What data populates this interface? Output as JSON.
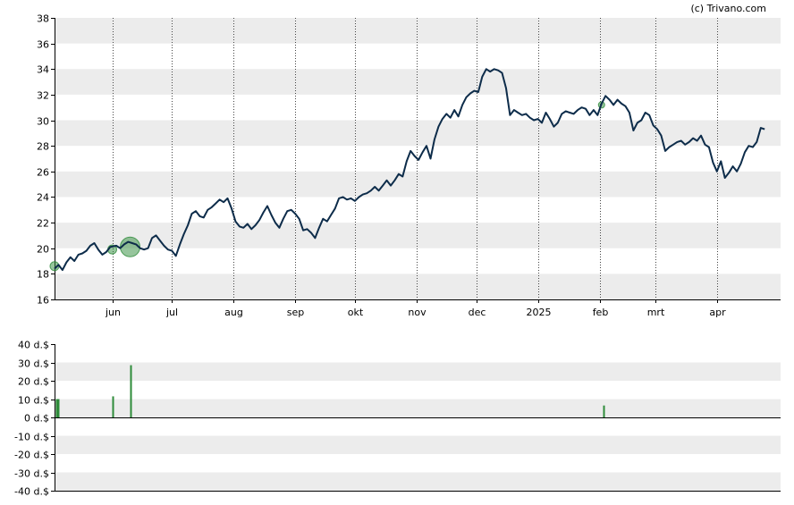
{
  "credit": "(c) Trivano.com",
  "chart_data": [
    {
      "type": "line",
      "name": "price",
      "ylim": [
        16,
        38
      ],
      "yticks": [
        16,
        18,
        20,
        22,
        24,
        26,
        28,
        30,
        32,
        34,
        36,
        38
      ],
      "ytick_labels": [
        "16",
        "18",
        "20",
        "22",
        "24",
        "26",
        "28",
        "30",
        "32",
        "34",
        "36",
        "38"
      ],
      "grid": "horizontal bands + dotted monthly verticals",
      "xlim": [
        "2024-05-03",
        "2025-05-03"
      ],
      "xtick_dates": [
        "2024-06-01",
        "2024-07-01",
        "2024-08-01",
        "2024-09-01",
        "2024-10-01",
        "2024-11-01",
        "2024-12-01",
        "2025-01-01",
        "2025-02-01",
        "2025-03-01",
        "2025-04-01"
      ],
      "xtick_labels": [
        "jun",
        "jul",
        "aug",
        "sep",
        "okt",
        "nov",
        "dec",
        "2025",
        "feb",
        "mrt",
        "apr"
      ],
      "line_color": "#0d2c4a",
      "series": [
        {
          "points": [
            [
              "2024-05-03",
              18.4
            ],
            [
              "2024-05-05",
              18.7
            ],
            [
              "2024-05-07",
              18.3
            ],
            [
              "2024-05-09",
              18.9
            ],
            [
              "2024-05-11",
              19.3
            ],
            [
              "2024-05-13",
              19.0
            ],
            [
              "2024-05-15",
              19.5
            ],
            [
              "2024-05-17",
              19.6
            ],
            [
              "2024-05-19",
              19.8
            ],
            [
              "2024-05-21",
              20.2
            ],
            [
              "2024-05-23",
              20.4
            ],
            [
              "2024-05-25",
              19.9
            ],
            [
              "2024-05-27",
              19.5
            ],
            [
              "2024-05-29",
              19.7
            ],
            [
              "2024-05-31",
              20.1
            ],
            [
              "2024-06-03",
              20.2
            ],
            [
              "2024-06-05",
              20.0
            ],
            [
              "2024-06-07",
              20.3
            ],
            [
              "2024-06-09",
              20.5
            ],
            [
              "2024-06-11",
              20.4
            ],
            [
              "2024-06-13",
              20.3
            ],
            [
              "2024-06-15",
              20.0
            ],
            [
              "2024-06-17",
              19.9
            ],
            [
              "2024-06-19",
              20.0
            ],
            [
              "2024-06-21",
              20.8
            ],
            [
              "2024-06-23",
              21.0
            ],
            [
              "2024-06-25",
              20.6
            ],
            [
              "2024-06-27",
              20.2
            ],
            [
              "2024-06-29",
              19.9
            ],
            [
              "2024-07-01",
              19.8
            ],
            [
              "2024-07-03",
              19.4
            ],
            [
              "2024-07-05",
              20.3
            ],
            [
              "2024-07-07",
              21.1
            ],
            [
              "2024-07-09",
              21.8
            ],
            [
              "2024-07-11",
              22.7
            ],
            [
              "2024-07-13",
              22.9
            ],
            [
              "2024-07-15",
              22.5
            ],
            [
              "2024-07-17",
              22.4
            ],
            [
              "2024-07-19",
              23.0
            ],
            [
              "2024-07-21",
              23.2
            ],
            [
              "2024-07-23",
              23.5
            ],
            [
              "2024-07-25",
              23.8
            ],
            [
              "2024-07-27",
              23.6
            ],
            [
              "2024-07-29",
              23.9
            ],
            [
              "2024-07-31",
              23.1
            ],
            [
              "2024-08-02",
              22.1
            ],
            [
              "2024-08-04",
              21.7
            ],
            [
              "2024-08-06",
              21.6
            ],
            [
              "2024-08-08",
              21.9
            ],
            [
              "2024-08-10",
              21.5
            ],
            [
              "2024-08-12",
              21.8
            ],
            [
              "2024-08-14",
              22.2
            ],
            [
              "2024-08-16",
              22.8
            ],
            [
              "2024-08-18",
              23.3
            ],
            [
              "2024-08-20",
              22.6
            ],
            [
              "2024-08-22",
              22.0
            ],
            [
              "2024-08-24",
              21.6
            ],
            [
              "2024-08-26",
              22.3
            ],
            [
              "2024-08-28",
              22.9
            ],
            [
              "2024-08-30",
              23.0
            ],
            [
              "2024-09-01",
              22.7
            ],
            [
              "2024-09-03",
              22.3
            ],
            [
              "2024-09-05",
              21.4
            ],
            [
              "2024-09-07",
              21.5
            ],
            [
              "2024-09-09",
              21.2
            ],
            [
              "2024-09-11",
              20.8
            ],
            [
              "2024-09-13",
              21.6
            ],
            [
              "2024-09-15",
              22.3
            ],
            [
              "2024-09-17",
              22.1
            ],
            [
              "2024-09-19",
              22.6
            ],
            [
              "2024-09-21",
              23.1
            ],
            [
              "2024-09-23",
              23.9
            ],
            [
              "2024-09-25",
              24.0
            ],
            [
              "2024-09-27",
              23.8
            ],
            [
              "2024-09-29",
              23.9
            ],
            [
              "2024-10-01",
              23.7
            ],
            [
              "2024-10-03",
              24.0
            ],
            [
              "2024-10-05",
              24.2
            ],
            [
              "2024-10-07",
              24.3
            ],
            [
              "2024-10-09",
              24.5
            ],
            [
              "2024-10-11",
              24.8
            ],
            [
              "2024-10-13",
              24.5
            ],
            [
              "2024-10-15",
              24.9
            ],
            [
              "2024-10-17",
              25.3
            ],
            [
              "2024-10-19",
              24.9
            ],
            [
              "2024-10-21",
              25.3
            ],
            [
              "2024-10-23",
              25.8
            ],
            [
              "2024-10-25",
              25.6
            ],
            [
              "2024-10-27",
              26.8
            ],
            [
              "2024-10-29",
              27.6
            ],
            [
              "2024-10-31",
              27.2
            ],
            [
              "2024-11-02",
              26.9
            ],
            [
              "2024-11-04",
              27.5
            ],
            [
              "2024-11-06",
              28.0
            ],
            [
              "2024-11-08",
              27.0
            ],
            [
              "2024-11-10",
              28.5
            ],
            [
              "2024-11-12",
              29.5
            ],
            [
              "2024-11-14",
              30.1
            ],
            [
              "2024-11-16",
              30.5
            ],
            [
              "2024-11-18",
              30.2
            ],
            [
              "2024-11-20",
              30.8
            ],
            [
              "2024-11-22",
              30.3
            ],
            [
              "2024-11-24",
              31.2
            ],
            [
              "2024-11-26",
              31.8
            ],
            [
              "2024-11-28",
              32.1
            ],
            [
              "2024-11-30",
              32.3
            ],
            [
              "2024-12-02",
              32.2
            ],
            [
              "2024-12-04",
              33.4
            ],
            [
              "2024-12-06",
              34.0
            ],
            [
              "2024-12-08",
              33.8
            ],
            [
              "2024-12-10",
              34.0
            ],
            [
              "2024-12-12",
              33.9
            ],
            [
              "2024-12-14",
              33.7
            ],
            [
              "2024-12-16",
              32.5
            ],
            [
              "2024-12-18",
              30.4
            ],
            [
              "2024-12-20",
              30.8
            ],
            [
              "2024-12-22",
              30.6
            ],
            [
              "2024-12-24",
              30.4
            ],
            [
              "2024-12-26",
              30.5
            ],
            [
              "2024-12-28",
              30.2
            ],
            [
              "2024-12-30",
              30.0
            ],
            [
              "2025-01-01",
              30.1
            ],
            [
              "2025-01-03",
              29.8
            ],
            [
              "2025-01-05",
              30.6
            ],
            [
              "2025-01-07",
              30.1
            ],
            [
              "2025-01-09",
              29.5
            ],
            [
              "2025-01-11",
              29.8
            ],
            [
              "2025-01-13",
              30.5
            ],
            [
              "2025-01-15",
              30.7
            ],
            [
              "2025-01-17",
              30.6
            ],
            [
              "2025-01-19",
              30.5
            ],
            [
              "2025-01-21",
              30.8
            ],
            [
              "2025-01-23",
              31.0
            ],
            [
              "2025-01-25",
              30.9
            ],
            [
              "2025-01-27",
              30.4
            ],
            [
              "2025-01-29",
              30.8
            ],
            [
              "2025-01-31",
              30.4
            ],
            [
              "2025-02-02",
              31.3
            ],
            [
              "2025-02-04",
              31.9
            ],
            [
              "2025-02-06",
              31.6
            ],
            [
              "2025-02-08",
              31.2
            ],
            [
              "2025-02-10",
              31.6
            ],
            [
              "2025-02-12",
              31.3
            ],
            [
              "2025-02-14",
              31.1
            ],
            [
              "2025-02-16",
              30.6
            ],
            [
              "2025-02-18",
              29.2
            ],
            [
              "2025-02-20",
              29.8
            ],
            [
              "2025-02-22",
              30.0
            ],
            [
              "2025-02-24",
              30.6
            ],
            [
              "2025-02-26",
              30.4
            ],
            [
              "2025-02-28",
              29.6
            ],
            [
              "2025-03-02",
              29.3
            ],
            [
              "2025-03-04",
              28.8
            ],
            [
              "2025-03-06",
              27.6
            ],
            [
              "2025-03-08",
              27.9
            ],
            [
              "2025-03-10",
              28.1
            ],
            [
              "2025-03-12",
              28.3
            ],
            [
              "2025-03-14",
              28.4
            ],
            [
              "2025-03-16",
              28.1
            ],
            [
              "2025-03-18",
              28.3
            ],
            [
              "2025-03-20",
              28.6
            ],
            [
              "2025-03-22",
              28.4
            ],
            [
              "2025-03-24",
              28.8
            ],
            [
              "2025-03-26",
              28.1
            ],
            [
              "2025-03-28",
              27.9
            ],
            [
              "2025-03-30",
              26.7
            ],
            [
              "2025-04-01",
              26.0
            ],
            [
              "2025-04-03",
              26.8
            ],
            [
              "2025-04-05",
              25.5
            ],
            [
              "2025-04-07",
              25.9
            ],
            [
              "2025-04-09",
              26.4
            ],
            [
              "2025-04-11",
              26.0
            ],
            [
              "2025-04-13",
              26.6
            ],
            [
              "2025-04-15",
              27.5
            ],
            [
              "2025-04-17",
              28.0
            ],
            [
              "2025-04-19",
              27.9
            ],
            [
              "2025-04-21",
              28.3
            ],
            [
              "2025-04-23",
              29.4
            ],
            [
              "2025-04-25",
              29.3
            ]
          ]
        }
      ],
      "markers": [
        {
          "date": "2024-05-03",
          "value": 18.6,
          "size": "small"
        },
        {
          "date": "2024-06-01",
          "value": 19.9,
          "size": "small"
        },
        {
          "date": "2024-06-10",
          "value": 20.1,
          "size": "large"
        },
        {
          "date": "2025-02-02",
          "value": 31.2,
          "size": "tiny"
        }
      ],
      "marker_color": "#2e8b3a"
    },
    {
      "type": "bar",
      "name": "dividend",
      "ylim": [
        -40,
        40
      ],
      "yticks": [
        -40,
        -30,
        -20,
        -10,
        0,
        10,
        20,
        30,
        40
      ],
      "ytick_labels": [
        "-40 d.$",
        "-30 d.$",
        "-20 d.$",
        "-10 d.$",
        "0 d.$",
        "10 d.$",
        "20 d.$",
        "30 d.$",
        "40 d.$"
      ],
      "grid": "horizontal bands",
      "bar_color": "#2e8b3a",
      "bars": [
        {
          "date": "2024-05-04",
          "value": 10
        },
        {
          "date": "2024-05-05",
          "value": 10
        },
        {
          "date": "2024-06-01",
          "value": 11.5
        },
        {
          "date": "2024-06-10",
          "value": 28.5
        },
        {
          "date": "2025-02-03",
          "value": 6.5
        }
      ]
    }
  ]
}
